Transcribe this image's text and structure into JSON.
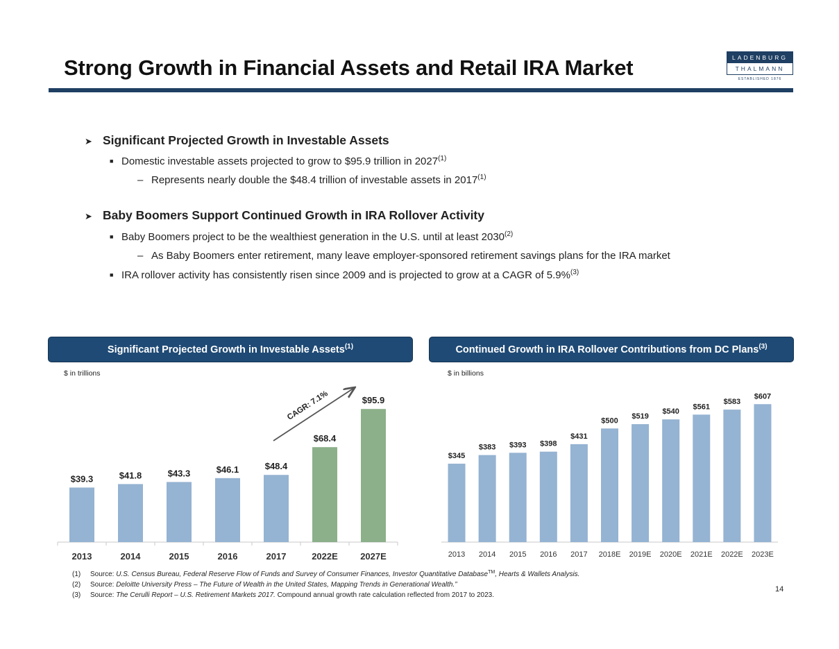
{
  "title": "Strong Growth in Financial Assets and Retail IRA Market",
  "logo": {
    "line1": "LADENBURG",
    "line2": "THALMANN",
    "line3": "ESTABLISHED 1876"
  },
  "bullets": {
    "s1_heading": "Significant Projected Growth in Investable Assets",
    "s1_p1": "Domestic investable assets projected to grow to $95.9 trillion in 2027",
    "s1_p1_sup": "(1)",
    "s1_p1_sub": "Represents nearly double the $48.4 trillion of investable assets in 2017",
    "s1_p1_sub_sup": "(1)",
    "s2_heading": "Baby Boomers Support Continued Growth in IRA Rollover Activity",
    "s2_p1": "Baby Boomers project to be the wealthiest generation in the U.S. until at least 2030",
    "s2_p1_sup": "(2)",
    "s2_p1_sub": "As Baby Boomers enter retirement, many leave employer-sponsored retirement savings plans for the IRA market",
    "s2_p2": "IRA rollover activity has consistently risen since 2009 and is projected to grow at a CAGR of 5.9%",
    "s2_p2_sup": "(3)"
  },
  "chart1_header": "Significant Projected Growth in Investable Assets",
  "chart1_header_sup": "(1)",
  "chart2_header": "Continued Growth in IRA Rollover Contributions from DC Plans",
  "chart2_header_sup": "(3)",
  "colors": {
    "navy": "#1f4a75",
    "bar_blue": "#95b3d2",
    "bar_green": "#8cb08a",
    "arrow": "#555555"
  },
  "chart_data": [
    {
      "type": "bar",
      "title": "Significant Projected Growth in Investable Assets",
      "ylabel": "$ in trillions",
      "categories": [
        "2013",
        "2014",
        "2015",
        "2016",
        "2017",
        "2022E",
        "2027E"
      ],
      "values": [
        39.3,
        41.8,
        43.3,
        46.1,
        48.4,
        68.4,
        95.9
      ],
      "labels": [
        "$39.3",
        "$41.8",
        "$43.3",
        "$46.1",
        "$48.4",
        "$68.4",
        "$95.9"
      ],
      "projected": [
        false,
        false,
        false,
        false,
        false,
        true,
        true
      ],
      "annotation": "CAGR: 7.1%",
      "ylim": [
        0,
        100
      ]
    },
    {
      "type": "bar",
      "title": "Continued Growth in IRA Rollover Contributions from DC Plans",
      "ylabel": "$ in billions",
      "categories": [
        "2013",
        "2014",
        "2015",
        "2016",
        "2017",
        "2018E",
        "2019E",
        "2020E",
        "2021E",
        "2022E",
        "2023E"
      ],
      "values": [
        345,
        383,
        393,
        398,
        431,
        500,
        519,
        540,
        561,
        583,
        607
      ],
      "labels": [
        "$345",
        "$383",
        "$393",
        "$398",
        "$431",
        "$500",
        "$519",
        "$540",
        "$561",
        "$583",
        "$607"
      ],
      "ylim": [
        0,
        620
      ]
    }
  ],
  "footnotes": [
    {
      "num": "(1)",
      "lead": "Source: ",
      "italic": "U.S. Census Bureau, Federal Reserve Flow of Funds and Survey of Consumer Finances, Investor Quantitative Database",
      "tm": "TM",
      "rest_italic": ", Hearts & Wallets Analysis.",
      "plain": ""
    },
    {
      "num": "(2)",
      "lead": "Source: ",
      "italic": "Deloitte University Press – The Future of Wealth in the United States, Mapping Trends in Generational Wealth.”",
      "tm": "",
      "rest_italic": "",
      "plain": ""
    },
    {
      "num": "(3)",
      "lead": "Source: ",
      "italic": "The Cerulli Report – U.S. Retirement Markets 2017.",
      "tm": "",
      "rest_italic": "",
      "plain": " Compound annual growth rate calculation reflected from 2017 to 2023."
    }
  ],
  "page_number": "14"
}
